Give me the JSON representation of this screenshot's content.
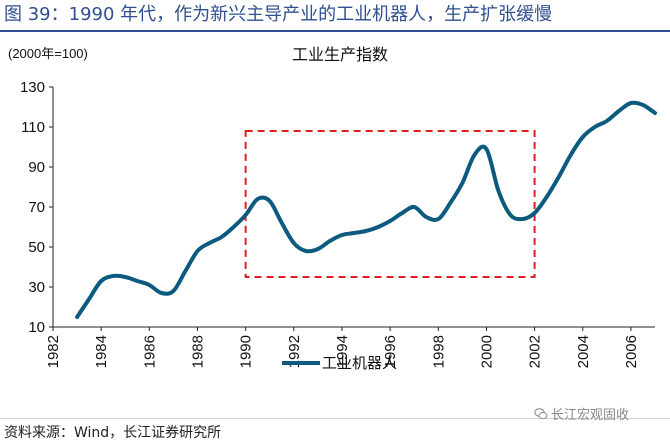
{
  "figure": {
    "title": "图 39：1990 年代，作为新兴主导产业的工业机器人，生产扩张缓慢",
    "source": "资料来源：Wind，长江证券研究所",
    "watermark": "长江宏观固收",
    "colors": {
      "title": "#2f4f8f",
      "line": "#0c5a7e",
      "highlight": "#e02020"
    }
  },
  "chart_data": {
    "type": "line",
    "title": "工业生产指数",
    "unit_label": "(2000年=100)",
    "xlabel": "",
    "ylabel": "",
    "xlim": [
      1982,
      2007
    ],
    "ylim": [
      10,
      130
    ],
    "xticks": [
      "1982",
      "1984",
      "1986",
      "1988",
      "1990",
      "1992",
      "1994",
      "1996",
      "1998",
      "2000",
      "2002",
      "2004",
      "2006"
    ],
    "yticks": [
      "10",
      "30",
      "50",
      "70",
      "90",
      "110",
      "130"
    ],
    "grid": false,
    "legend": "bottom-left",
    "series": [
      {
        "name": "工业机器人",
        "x": [
          1983.0,
          1983.5,
          1984.0,
          1984.5,
          1985.0,
          1985.5,
          1986.0,
          1986.5,
          1987.0,
          1987.5,
          1988.0,
          1988.5,
          1989.0,
          1989.5,
          1990.0,
          1990.5,
          1991.0,
          1991.5,
          1992.0,
          1992.5,
          1993.0,
          1993.5,
          1994.0,
          1994.5,
          1995.0,
          1995.5,
          1996.0,
          1996.5,
          1997.0,
          1997.5,
          1998.0,
          1998.5,
          1999.0,
          1999.5,
          2000.0,
          2000.5,
          2001.0,
          2001.5,
          2002.0,
          2002.5,
          2003.0,
          2003.5,
          2004.0,
          2004.5,
          2005.0,
          2005.5,
          2006.0,
          2006.5,
          2007.0
        ],
        "values": [
          15,
          24,
          33,
          35.5,
          35,
          33,
          31,
          27,
          28,
          38,
          48,
          52,
          55,
          60,
          66,
          74,
          73,
          62,
          52,
          48,
          49,
          53,
          56,
          57,
          58,
          60,
          63,
          67,
          70,
          65,
          64,
          72,
          82,
          96,
          99,
          78,
          66,
          64,
          67,
          75,
          85,
          96,
          105,
          110,
          113,
          118,
          122,
          121,
          117
        ]
      }
    ],
    "annotations": [
      {
        "type": "dashed-rectangle",
        "x": [
          1990,
          2002
        ],
        "y": [
          35,
          108
        ]
      }
    ]
  }
}
